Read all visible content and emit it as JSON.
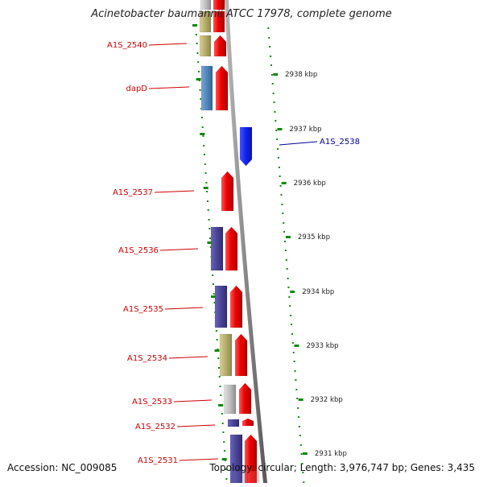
{
  "title": "Acinetobacter baumannii ATCC 17978, complete genome",
  "footer": {
    "accession": "Accession: NC_009085",
    "topology": "Topology: circular; Length: 3,976,747 bp; Genes: 3,435"
  },
  "colors": {
    "forward_gene": "#ee1111",
    "reverse_gene": "#1122ee",
    "left_label": "#cc0000",
    "right_label": "#000099",
    "tick": "#118811",
    "backbone": "#888888"
  },
  "ruler_labels": [
    "2938 kbp",
    "2937 kbp",
    "2936 kbp",
    "2935 kbp",
    "2934 kbp",
    "2933 kbp",
    "2932 kbp",
    "2931 kbp"
  ],
  "left_gene_labels": [
    "A1S_2540",
    "dapD",
    "A1S_2537",
    "A1S_2536",
    "A1S_2535",
    "A1S_2534",
    "A1S_2533",
    "A1S_2532",
    "A1S_2531"
  ],
  "right_gene_labels": [
    "A1S_2538"
  ],
  "cog_category_colors": [
    "#b8b070",
    "#5588bb",
    "#4a4499",
    "#bbbbbb"
  ]
}
